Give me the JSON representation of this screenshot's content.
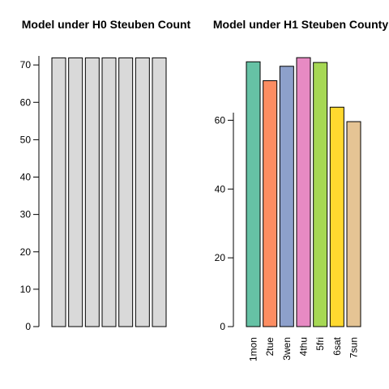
{
  "chart_data": [
    {
      "type": "bar",
      "title": "Model under H0 Steuben Count",
      "categories": [
        "1mon",
        "2tue",
        "3wen",
        "4thu",
        "5fri",
        "6sat",
        "7sun"
      ],
      "show_category_labels": false,
      "values": [
        71.9,
        71.9,
        71.9,
        71.9,
        71.9,
        71.9,
        71.9
      ],
      "colors": [
        "#d9d9d9",
        "#d9d9d9",
        "#d9d9d9",
        "#d9d9d9",
        "#d9d9d9",
        "#d9d9d9",
        "#d9d9d9"
      ],
      "yticks": [
        0,
        10,
        20,
        30,
        40,
        50,
        60,
        70
      ],
      "ylim": [
        0,
        74.8
      ],
      "xlabel": "",
      "ylabel": ""
    },
    {
      "type": "bar",
      "title": "Model under H1 Steuben County",
      "categories": [
        "1mon",
        "2tue",
        "3wen",
        "4thu",
        "5fri",
        "6sat",
        "7sun"
      ],
      "show_category_labels": true,
      "values": [
        77.0,
        71.5,
        75.7,
        78.2,
        76.8,
        63.8,
        59.6
      ],
      "colors": [
        "#66c2a5",
        "#fc8d62",
        "#8da0cb",
        "#e78ac3",
        "#a6d854",
        "#ffd92f",
        "#e5c494"
      ],
      "yticks": [
        0,
        20,
        40,
        60
      ],
      "ylim": [
        0,
        81.3
      ],
      "xlabel": "",
      "ylabel": ""
    }
  ]
}
